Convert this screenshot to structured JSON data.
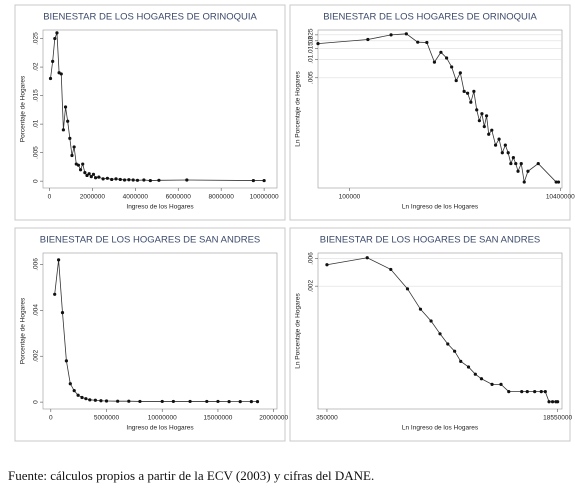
{
  "chart_data": [
    {
      "type": "line",
      "title": "BIENESTAR DE LOS HOGARES DE ORINOQUIA",
      "ylabel": "Porcentaje de Hogares",
      "xlabel": "Ingreso de los Hogares",
      "x": [
        50000,
        150000,
        250000,
        350000,
        450000,
        550000,
        650000,
        750000,
        850000,
        950000,
        1050000,
        1150000,
        1250000,
        1350000,
        1450000,
        1550000,
        1650000,
        1750000,
        1850000,
        1950000,
        2050000,
        2150000,
        2300000,
        2500000,
        2700000,
        2900000,
        3100000,
        3300000,
        3500000,
        3700000,
        3900000,
        4100000,
        4400000,
        4700000,
        5100000,
        6400000,
        9500000,
        10000000
      ],
      "values": [
        0.018,
        0.021,
        0.025,
        0.026,
        0.019,
        0.0188,
        0.009,
        0.013,
        0.0105,
        0.0075,
        0.0045,
        0.006,
        0.003,
        0.0028,
        0.002,
        0.003,
        0.0015,
        0.001,
        0.0013,
        0.0008,
        0.0012,
        0.0006,
        0.0007,
        0.0004,
        0.0005,
        0.0003,
        0.0004,
        0.0003,
        0.0002,
        0.00025,
        0.0002,
        0.00015,
        0.0002,
        0.0001,
        0.00015,
        0.0002,
        0.0001,
        0.0001
      ],
      "xlim": [
        -300000,
        10600000
      ],
      "ylim": [
        -0.0012,
        0.0265
      ],
      "xticks": [
        0,
        2000000,
        4000000,
        6000000,
        8000000,
        10000000
      ],
      "yticks": [
        0,
        {
          "value": 0.005,
          "label": ".005"
        },
        {
          "value": 0.01,
          "label": ".01"
        },
        {
          "value": 0.015,
          "label": ".015"
        },
        {
          "value": 0.02,
          "label": ".02"
        },
        {
          "value": 0.025,
          "label": ".025"
        }
      ],
      "log": false,
      "grid": false,
      "color": "#333333"
    },
    {
      "type": "line",
      "title": "BIENESTAR DE LOS HOGARES DE ORINOQUIA",
      "ylabel": "Ln Porcentaje de Hogares",
      "xlabel": "Ln Ingreso de los Hogares",
      "x": [
        50000,
        150000,
        250000,
        350000,
        450000,
        550000,
        650000,
        750000,
        850000,
        950000,
        1050000,
        1150000,
        1250000,
        1350000,
        1450000,
        1550000,
        1650000,
        1750000,
        1850000,
        1950000,
        2050000,
        2150000,
        2300000,
        2500000,
        2700000,
        2900000,
        3100000,
        3300000,
        3500000,
        3700000,
        3900000,
        4100000,
        4400000,
        4700000,
        5100000,
        6400000,
        9500000,
        10000000
      ],
      "values": [
        0.018,
        0.021,
        0.025,
        0.026,
        0.019,
        0.0188,
        0.009,
        0.013,
        0.0105,
        0.0075,
        0.0045,
        0.006,
        0.003,
        0.0028,
        0.002,
        0.003,
        0.0015,
        0.001,
        0.0013,
        0.0008,
        0.0012,
        0.0006,
        0.0007,
        0.0004,
        0.0005,
        0.0003,
        0.0004,
        0.0003,
        0.0002,
        0.00025,
        0.0002,
        0.00015,
        0.0002,
        0.0001,
        0.00015,
        0.0002,
        0.0001,
        0.0001
      ],
      "xlim": [
        50000,
        10800000
      ],
      "ylim": [
        8e-05,
        0.03
      ],
      "xticks": [
        100000,
        10400000
      ],
      "yticks": [
        {
          "value": 0.005,
          "label": ".005"
        },
        {
          "value": 0.01,
          "label": ".01"
        },
        {
          "value": 0.015,
          "label": ".015"
        },
        {
          "value": 0.02,
          "label": ".02"
        },
        {
          "value": 0.025,
          "label": ".025"
        }
      ],
      "log": true,
      "grid": true,
      "color": "#333333"
    },
    {
      "type": "line",
      "title": "BIENESTAR DE LOS HOGARES DE SAN ANDRES",
      "ylabel": "Porcentaje de Hogares",
      "xlabel": "Ingreso de los Hogares",
      "x": [
        350000,
        700000,
        1050000,
        1400000,
        1750000,
        2100000,
        2450000,
        2800000,
        3150000,
        3500000,
        4000000,
        4500000,
        5000000,
        6000000,
        7000000,
        8000000,
        10000000,
        11000000,
        12500000,
        14000000,
        15000000,
        16000000,
        17000000,
        18000000,
        18550000
      ],
      "values": [
        0.0047,
        0.0062,
        0.0039,
        0.0018,
        0.0008,
        0.0005,
        0.0003,
        0.0002,
        0.00015,
        0.0001,
        8e-05,
        6e-05,
        5e-05,
        4e-05,
        4e-05,
        3e-05,
        3e-05,
        3e-05,
        3e-05,
        3e-05,
        3e-05,
        2e-05,
        2e-05,
        2e-05,
        2e-05
      ],
      "xlim": [
        -700000,
        20300000
      ],
      "ylim": [
        -0.0003,
        0.0065
      ],
      "xticks": [
        0,
        5000000,
        10000000,
        15000000,
        20000000
      ],
      "yticks": [
        0,
        {
          "value": 0.002,
          "label": ".002"
        },
        {
          "value": 0.004,
          "label": ".004"
        },
        {
          "value": 0.006,
          "label": ".006"
        }
      ],
      "log": false,
      "grid": false,
      "color": "#333333"
    },
    {
      "type": "line",
      "title": "BIENESTAR DE LOS HOGARES DE SAN ANDRES",
      "ylabel": "Ln Porcentaje de Hogares",
      "xlabel": "Ln Ingreso de los Hogares",
      "x": [
        350000,
        700000,
        1050000,
        1400000,
        1750000,
        2100000,
        2450000,
        2800000,
        3150000,
        3500000,
        4000000,
        4500000,
        5000000,
        6000000,
        7000000,
        8000000,
        10000000,
        11000000,
        12500000,
        14000000,
        15000000,
        16000000,
        17000000,
        18000000,
        18550000
      ],
      "values": [
        0.0047,
        0.0062,
        0.0039,
        0.0018,
        0.0008,
        0.0005,
        0.0003,
        0.0002,
        0.00015,
        0.0001,
        8e-05,
        6e-05,
        5e-05,
        4e-05,
        4e-05,
        3e-05,
        3e-05,
        3e-05,
        3e-05,
        3e-05,
        3e-05,
        2e-05,
        2e-05,
        2e-05,
        2e-05
      ],
      "xlim": [
        300000,
        20000000
      ],
      "ylim": [
        1.5e-05,
        0.0075
      ],
      "xticks": [
        350000,
        18550000
      ],
      "yticks": [
        {
          "value": 0.002,
          "label": ".002"
        },
        {
          "value": 0.006,
          "label": ".006"
        }
      ],
      "log": true,
      "grid": true,
      "color": "#333333"
    }
  ],
  "source": "Fuente: cálculos propios a partir de la ECV (2003) y cifras del DANE."
}
